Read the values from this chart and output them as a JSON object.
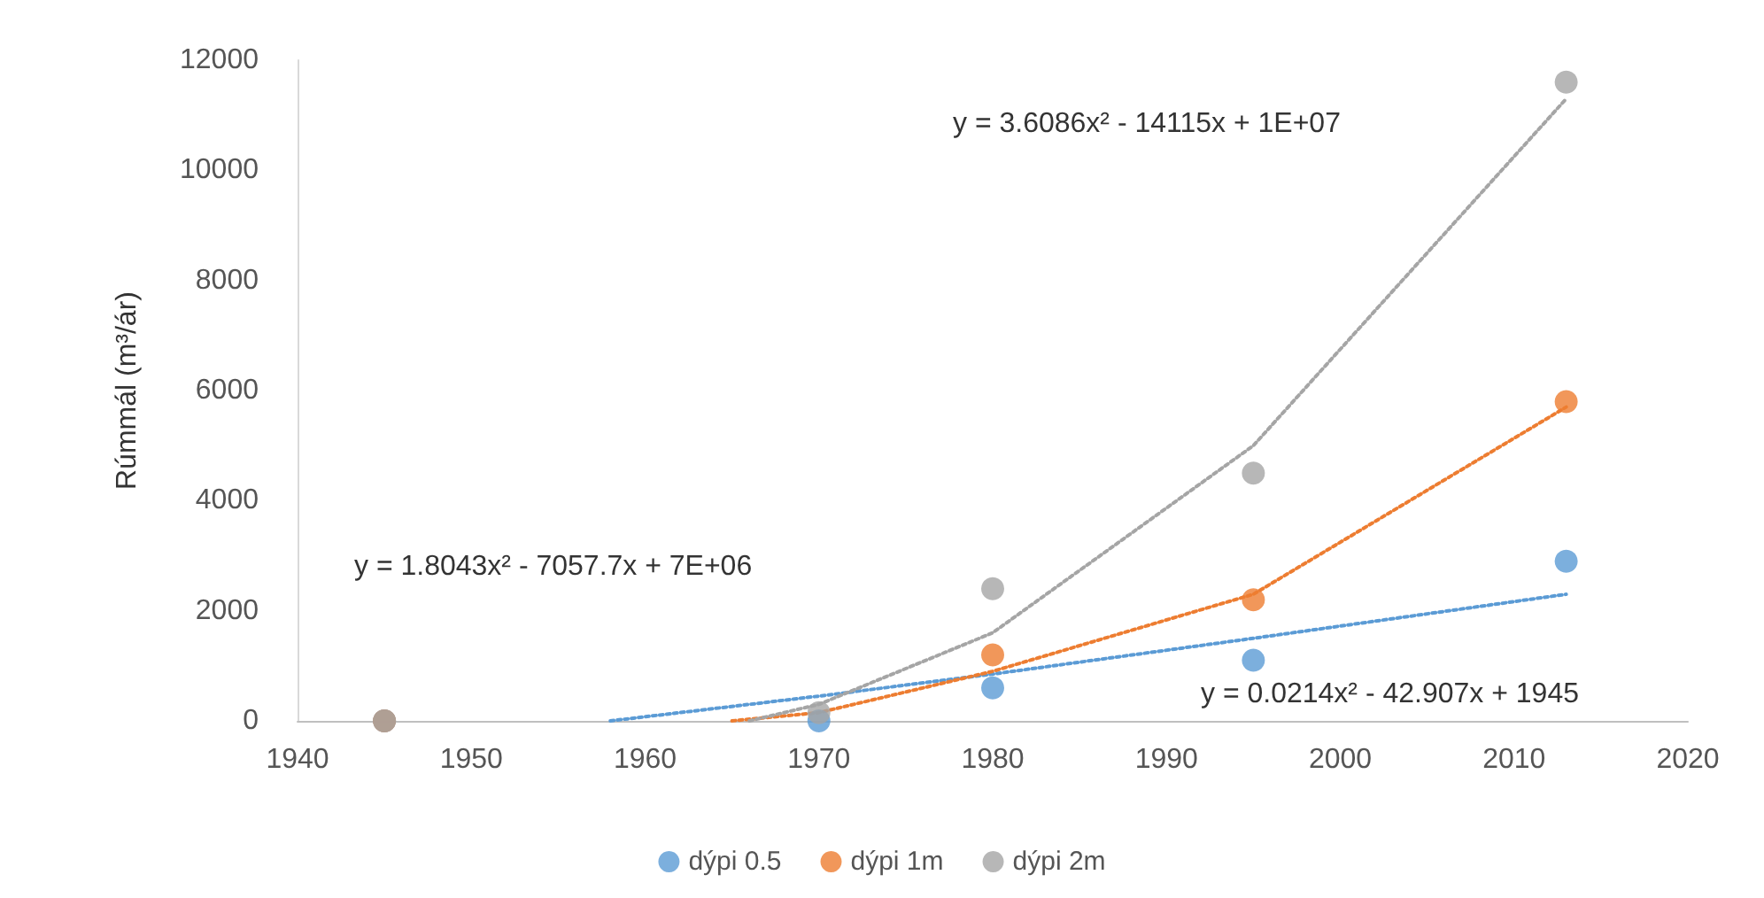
{
  "chart_data": {
    "type": "scatter",
    "ylabel": "Rúmmál (m³/ár)",
    "xlim": [
      1940,
      2020
    ],
    "xticks": [
      1940,
      1950,
      1960,
      1970,
      1980,
      1990,
      2000,
      2010,
      2020
    ],
    "ylim": [
      0,
      12000
    ],
    "yticks": [
      0,
      2000,
      4000,
      6000,
      8000,
      10000,
      12000
    ],
    "grid": false,
    "legend": "bottom",
    "marker": "circle",
    "x": [
      1945,
      1970,
      1980,
      1995,
      2013
    ],
    "series": [
      {
        "name": "dýpi 0.5",
        "color": "#5b9bd5",
        "values": [
          0,
          0,
          600,
          1100,
          2900
        ]
      },
      {
        "name": "dýpi 1m",
        "color": "#ed7d31",
        "values": [
          0,
          null,
          1200,
          2200,
          5800
        ]
      },
      {
        "name": "dýpi 2m",
        "color": "#a5a5a5",
        "values": [
          0,
          150,
          2400,
          4500,
          11600
        ]
      },
      {
        "type": "line",
        "color": "#5b9bd5",
        "line_style": "dotted",
        "marker": "none",
        "x": [
          1958,
          1970,
          1980,
          1995,
          2013
        ],
        "values": [
          0,
          450,
          850,
          1500,
          2300
        ]
      },
      {
        "type": "line",
        "color": "#ed7d31",
        "line_style": "dotted",
        "marker": "none",
        "x": [
          1965,
          1970,
          1980,
          1995,
          2013
        ],
        "values": [
          0,
          150,
          900,
          2300,
          5700
        ]
      },
      {
        "type": "line",
        "color": "#a5a5a5",
        "line_style": "dotted",
        "marker": "none",
        "x": [
          1966,
          1970,
          1980,
          1995,
          2013
        ],
        "values": [
          0,
          300,
          1600,
          5000,
          11300
        ]
      }
    ],
    "annotations": [
      "y = 3.6086x² - 14115x + 1E+07",
      "y = 1.8043x² - 7057.7x + 7E+06",
      "y = 0.0214x² - 42.907x + 1945"
    ]
  }
}
